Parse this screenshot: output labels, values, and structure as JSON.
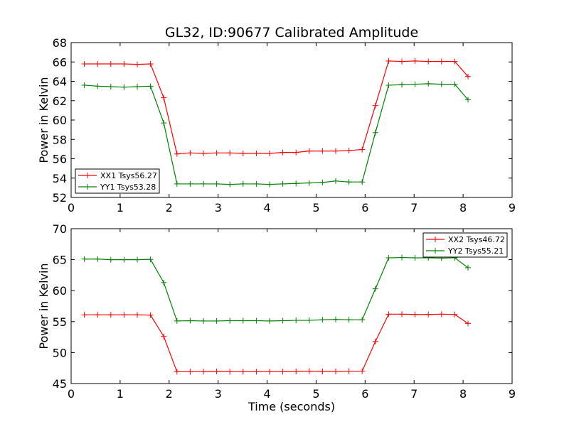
{
  "title": "GL32, ID:90677 Calibrated Amplitude",
  "chart_data": [
    {
      "type": "line",
      "title": "GL32, ID:90677 Calibrated Amplitude",
      "xlabel": "",
      "ylabel": "Power in Kelvin",
      "xlim": [
        0,
        9
      ],
      "ylim": [
        52,
        68
      ],
      "xticks": [
        "0",
        "1",
        "2",
        "3",
        "4",
        "5",
        "6",
        "7",
        "8",
        "9"
      ],
      "yticks": [
        "52",
        "54",
        "56",
        "58",
        "60",
        "62",
        "64",
        "66",
        "68"
      ],
      "grid": false,
      "legend_position": "lower-left",
      "x": [
        0.27,
        0.54,
        0.81,
        1.08,
        1.35,
        1.62,
        1.89,
        2.16,
        2.43,
        2.7,
        2.97,
        3.24,
        3.51,
        3.78,
        4.05,
        4.32,
        4.59,
        4.86,
        5.13,
        5.4,
        5.67,
        5.94,
        6.21,
        6.48,
        6.75,
        7.02,
        7.29,
        7.56,
        7.83,
        8.1
      ],
      "series": [
        {
          "name": "XX1 Tsys56.27",
          "color": "#ff0000",
          "values": [
            65.8,
            65.8,
            65.8,
            65.8,
            65.75,
            65.8,
            62.3,
            56.5,
            56.6,
            56.55,
            56.6,
            56.6,
            56.55,
            56.55,
            56.55,
            56.65,
            56.65,
            56.8,
            56.8,
            56.8,
            56.85,
            56.95,
            61.5,
            66.1,
            66.05,
            66.1,
            66.05,
            66.05,
            66.05,
            64.5
          ]
        },
        {
          "name": "YY1 Tsys53.28",
          "color": "#008000",
          "values": [
            63.6,
            63.5,
            63.45,
            63.4,
            63.45,
            63.5,
            59.7,
            53.4,
            53.4,
            53.4,
            53.4,
            53.35,
            53.4,
            53.4,
            53.35,
            53.4,
            53.45,
            53.5,
            53.55,
            53.7,
            53.6,
            53.6,
            58.7,
            63.6,
            63.65,
            63.7,
            63.75,
            63.7,
            63.7,
            62.1
          ]
        }
      ]
    },
    {
      "type": "line",
      "title": "",
      "xlabel": "Time (seconds)",
      "ylabel": "Power in Kelvin",
      "xlim": [
        0,
        9
      ],
      "ylim": [
        45,
        70
      ],
      "xticks": [
        "0",
        "1",
        "2",
        "3",
        "4",
        "5",
        "6",
        "7",
        "8",
        "9"
      ],
      "yticks": [
        "45",
        "50",
        "55",
        "60",
        "65",
        "70"
      ],
      "grid": false,
      "legend_position": "upper-right",
      "x": [
        0.27,
        0.54,
        0.81,
        1.08,
        1.35,
        1.62,
        1.89,
        2.16,
        2.43,
        2.7,
        2.97,
        3.24,
        3.51,
        3.78,
        4.05,
        4.32,
        4.59,
        4.86,
        5.13,
        5.4,
        5.67,
        5.94,
        6.21,
        6.48,
        6.75,
        7.02,
        7.29,
        7.56,
        7.83,
        8.1
      ],
      "series": [
        {
          "name": "XX2 Tsys46.72",
          "color": "#ff0000",
          "values": [
            56.1,
            56.1,
            56.1,
            56.1,
            56.1,
            56.05,
            52.6,
            46.9,
            46.9,
            46.9,
            46.95,
            46.9,
            46.9,
            46.9,
            46.9,
            46.9,
            46.95,
            47.0,
            46.95,
            46.95,
            47.0,
            47.0,
            51.8,
            56.2,
            56.2,
            56.15,
            56.15,
            56.2,
            56.15,
            54.7
          ]
        },
        {
          "name": "YY2 Tsys55.21",
          "color": "#008000",
          "values": [
            65.1,
            65.1,
            65.0,
            65.0,
            65.0,
            65.05,
            61.3,
            55.1,
            55.15,
            55.1,
            55.1,
            55.15,
            55.15,
            55.15,
            55.1,
            55.15,
            55.2,
            55.2,
            55.3,
            55.35,
            55.3,
            55.3,
            60.3,
            65.3,
            65.35,
            65.3,
            65.3,
            65.25,
            65.3,
            63.7
          ]
        }
      ]
    }
  ]
}
